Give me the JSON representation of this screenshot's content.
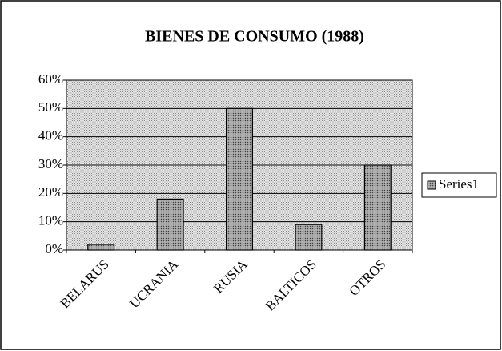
{
  "chart_data": {
    "type": "bar",
    "title": "BIENES DE CONSUMO (1988)",
    "categories": [
      "BELARUS",
      "UCRANIA",
      "RUSIA",
      "BALTICOS",
      "OTROS"
    ],
    "series": [
      {
        "name": "Series1",
        "color": "#9a9a9a",
        "values": [
          2,
          18,
          50,
          9,
          30
        ]
      }
    ],
    "ylim": [
      0,
      60
    ],
    "yticks": [
      {
        "value": 0,
        "label": "0%"
      },
      {
        "value": 10,
        "label": "10%"
      },
      {
        "value": 20,
        "label": "20%"
      },
      {
        "value": 30,
        "label": "30%"
      },
      {
        "value": 40,
        "label": "40%"
      },
      {
        "value": 50,
        "label": "50%"
      },
      {
        "value": 60,
        "label": "60%"
      }
    ],
    "grid": true,
    "legend": "right"
  }
}
